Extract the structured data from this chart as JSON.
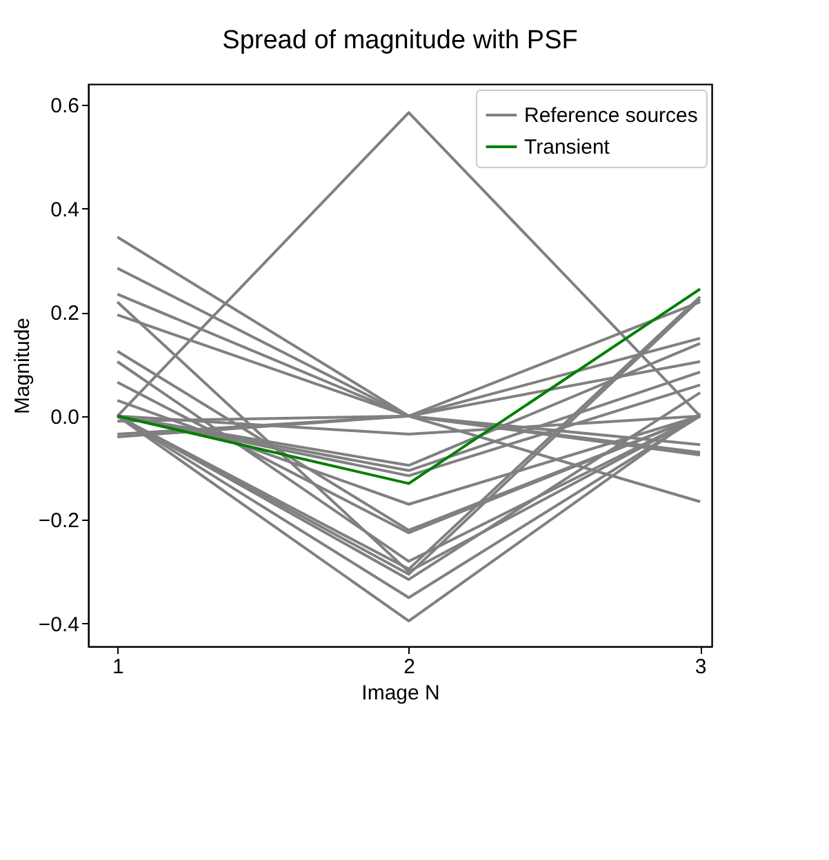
{
  "chart_data": {
    "type": "line",
    "title": "Spread of magnitude with PSF",
    "xlabel": "Image N",
    "ylabel": "Magnitude",
    "x": [
      1,
      2,
      3
    ],
    "xlim": [
      0.9,
      3.04
    ],
    "xticks": [
      1,
      2,
      3
    ],
    "ylim": [
      -0.444,
      0.64
    ],
    "yticks": [
      {
        "value": -0.4,
        "label": "−0.4"
      },
      {
        "value": -0.2,
        "label": "−0.2"
      },
      {
        "value": 0,
        "label": "0.0"
      },
      {
        "value": 0.2,
        "label": "0.2"
      },
      {
        "value": 0.4,
        "label": "0.4"
      },
      {
        "value": 0.6,
        "label": "0.6"
      }
    ],
    "grid": false,
    "legend": "top right",
    "marker": "none",
    "line_style": "solid",
    "series": [
      {
        "name": "Reference sources",
        "color": "#808080",
        "values": [
          0.345,
          0,
          -0.075
        ]
      },
      {
        "color": "#808080",
        "values": [
          0.285,
          0,
          -0.07
        ]
      },
      {
        "color": "#808080",
        "values": [
          0.235,
          0,
          -0.055
        ]
      },
      {
        "color": "#808080",
        "values": [
          0.195,
          0,
          -0.165
        ]
      },
      {
        "color": "#808080",
        "values": [
          -0.04,
          0,
          0.22
        ]
      },
      {
        "color": "#808080",
        "values": [
          -0.035,
          0,
          0.15
        ]
      },
      {
        "color": "#808080",
        "values": [
          -0.01,
          0,
          0.105
        ]
      },
      {
        "color": "#808080",
        "values": [
          0,
          0.585,
          0.0
        ]
      },
      {
        "color": "#808080",
        "values": [
          0.22,
          -0.3,
          0
        ]
      },
      {
        "color": "#808080",
        "values": [
          0.125,
          -0.22,
          0
        ]
      },
      {
        "color": "#808080",
        "values": [
          0.105,
          -0.28,
          0
        ]
      },
      {
        "color": "#808080",
        "values": [
          0.065,
          -0.225,
          0
        ]
      },
      {
        "color": "#808080",
        "values": [
          0.03,
          -0.17,
          0
        ]
      },
      {
        "color": "#808080",
        "values": [
          0,
          -0.095,
          0.14
        ]
      },
      {
        "color": "#808080",
        "values": [
          0,
          -0.105,
          0.085
        ]
      },
      {
        "color": "#808080",
        "values": [
          0,
          -0.115,
          0.06
        ]
      },
      {
        "color": "#808080",
        "values": [
          0,
          -0.295,
          0.23
        ]
      },
      {
        "color": "#808080",
        "values": [
          0,
          -0.305,
          0.225
        ]
      },
      {
        "color": "#808080",
        "values": [
          0,
          -0.315,
          0.045
        ]
      },
      {
        "color": "#808080",
        "values": [
          0,
          -0.35,
          0.0
        ]
      },
      {
        "color": "#808080",
        "values": [
          0,
          -0.395,
          0.005
        ]
      },
      {
        "color": "#808080",
        "values": [
          0,
          -0.035,
          -0.0
        ]
      },
      {
        "name": "Transient",
        "color": "#008000",
        "values": [
          0,
          -0.13,
          0.245
        ]
      }
    ]
  }
}
